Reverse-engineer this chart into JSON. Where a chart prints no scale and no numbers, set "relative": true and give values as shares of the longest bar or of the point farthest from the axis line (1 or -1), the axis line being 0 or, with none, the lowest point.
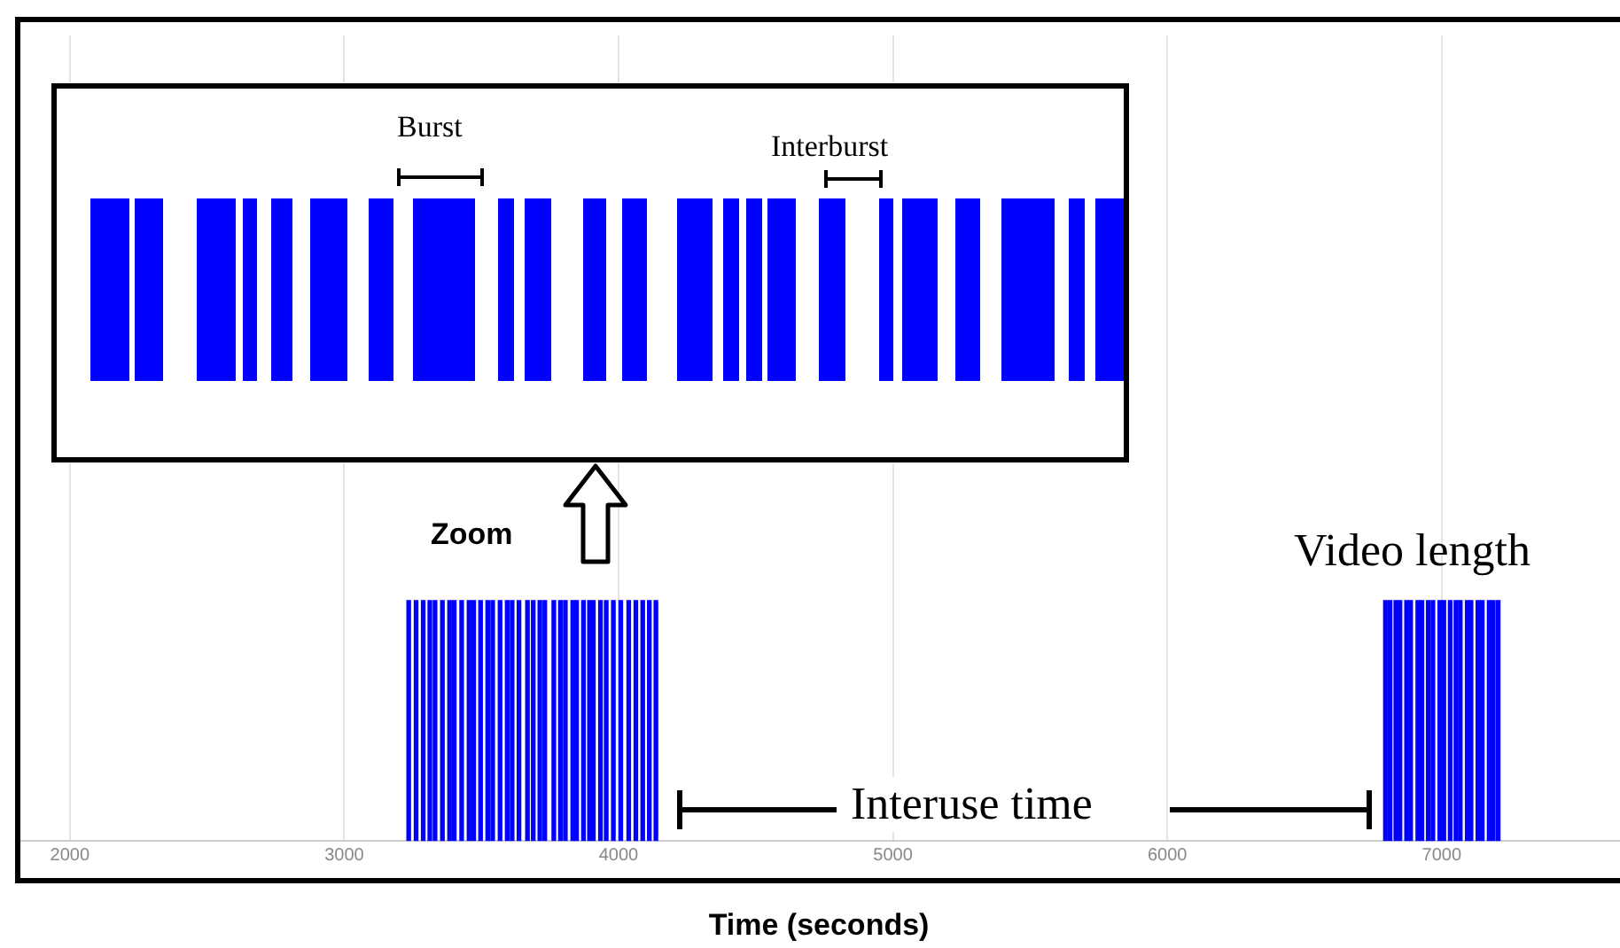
{
  "chart_data": {
    "type": "bar",
    "relative": true,
    "color": "#0000ff",
    "grid": "x",
    "tick_labels": "x",
    "xlabel": "Time (seconds)",
    "xlim": [
      1810,
      7650
    ],
    "xticks": [
      2000,
      3000,
      4000,
      5000,
      6000,
      7000
    ],
    "annotations": [
      "Burst",
      "Interburst",
      "Zoom",
      "Video length",
      "Interuse time"
    ],
    "x": [
      3235,
      3262,
      3288,
      3312,
      3331,
      3358,
      3384,
      3401,
      3428,
      3455,
      3472,
      3497,
      3523,
      3541,
      3568,
      3594,
      3612,
      3637,
      3668,
      3689,
      3713,
      3731,
      3764,
      3788,
      3806,
      3833,
      3847,
      3872,
      3894,
      3908,
      3934,
      3955,
      3981,
      4008,
      4037,
      4063,
      4088,
      4112,
      4136,
      6795,
      6812,
      6833,
      6848,
      6872,
      6887,
      6913,
      6928,
      6951,
      6968,
      6993,
      7008,
      7031,
      7052,
      7068,
      7093,
      7107,
      7132,
      7148,
      7173,
      7188,
      7206
    ],
    "values": [
      1,
      1,
      1,
      1,
      1,
      1,
      1,
      1,
      1,
      1,
      1,
      1,
      1,
      1,
      1,
      1,
      1,
      1,
      1,
      1,
      1,
      1,
      1,
      1,
      1,
      1,
      1,
      1,
      1,
      1,
      1,
      1,
      1,
      1,
      1,
      1,
      1,
      1,
      1,
      1,
      1,
      1,
      1,
      1,
      1,
      1,
      1,
      1,
      1,
      1,
      1,
      1,
      1,
      1,
      1,
      1,
      1,
      1,
      1,
      1,
      1
    ]
  }
}
